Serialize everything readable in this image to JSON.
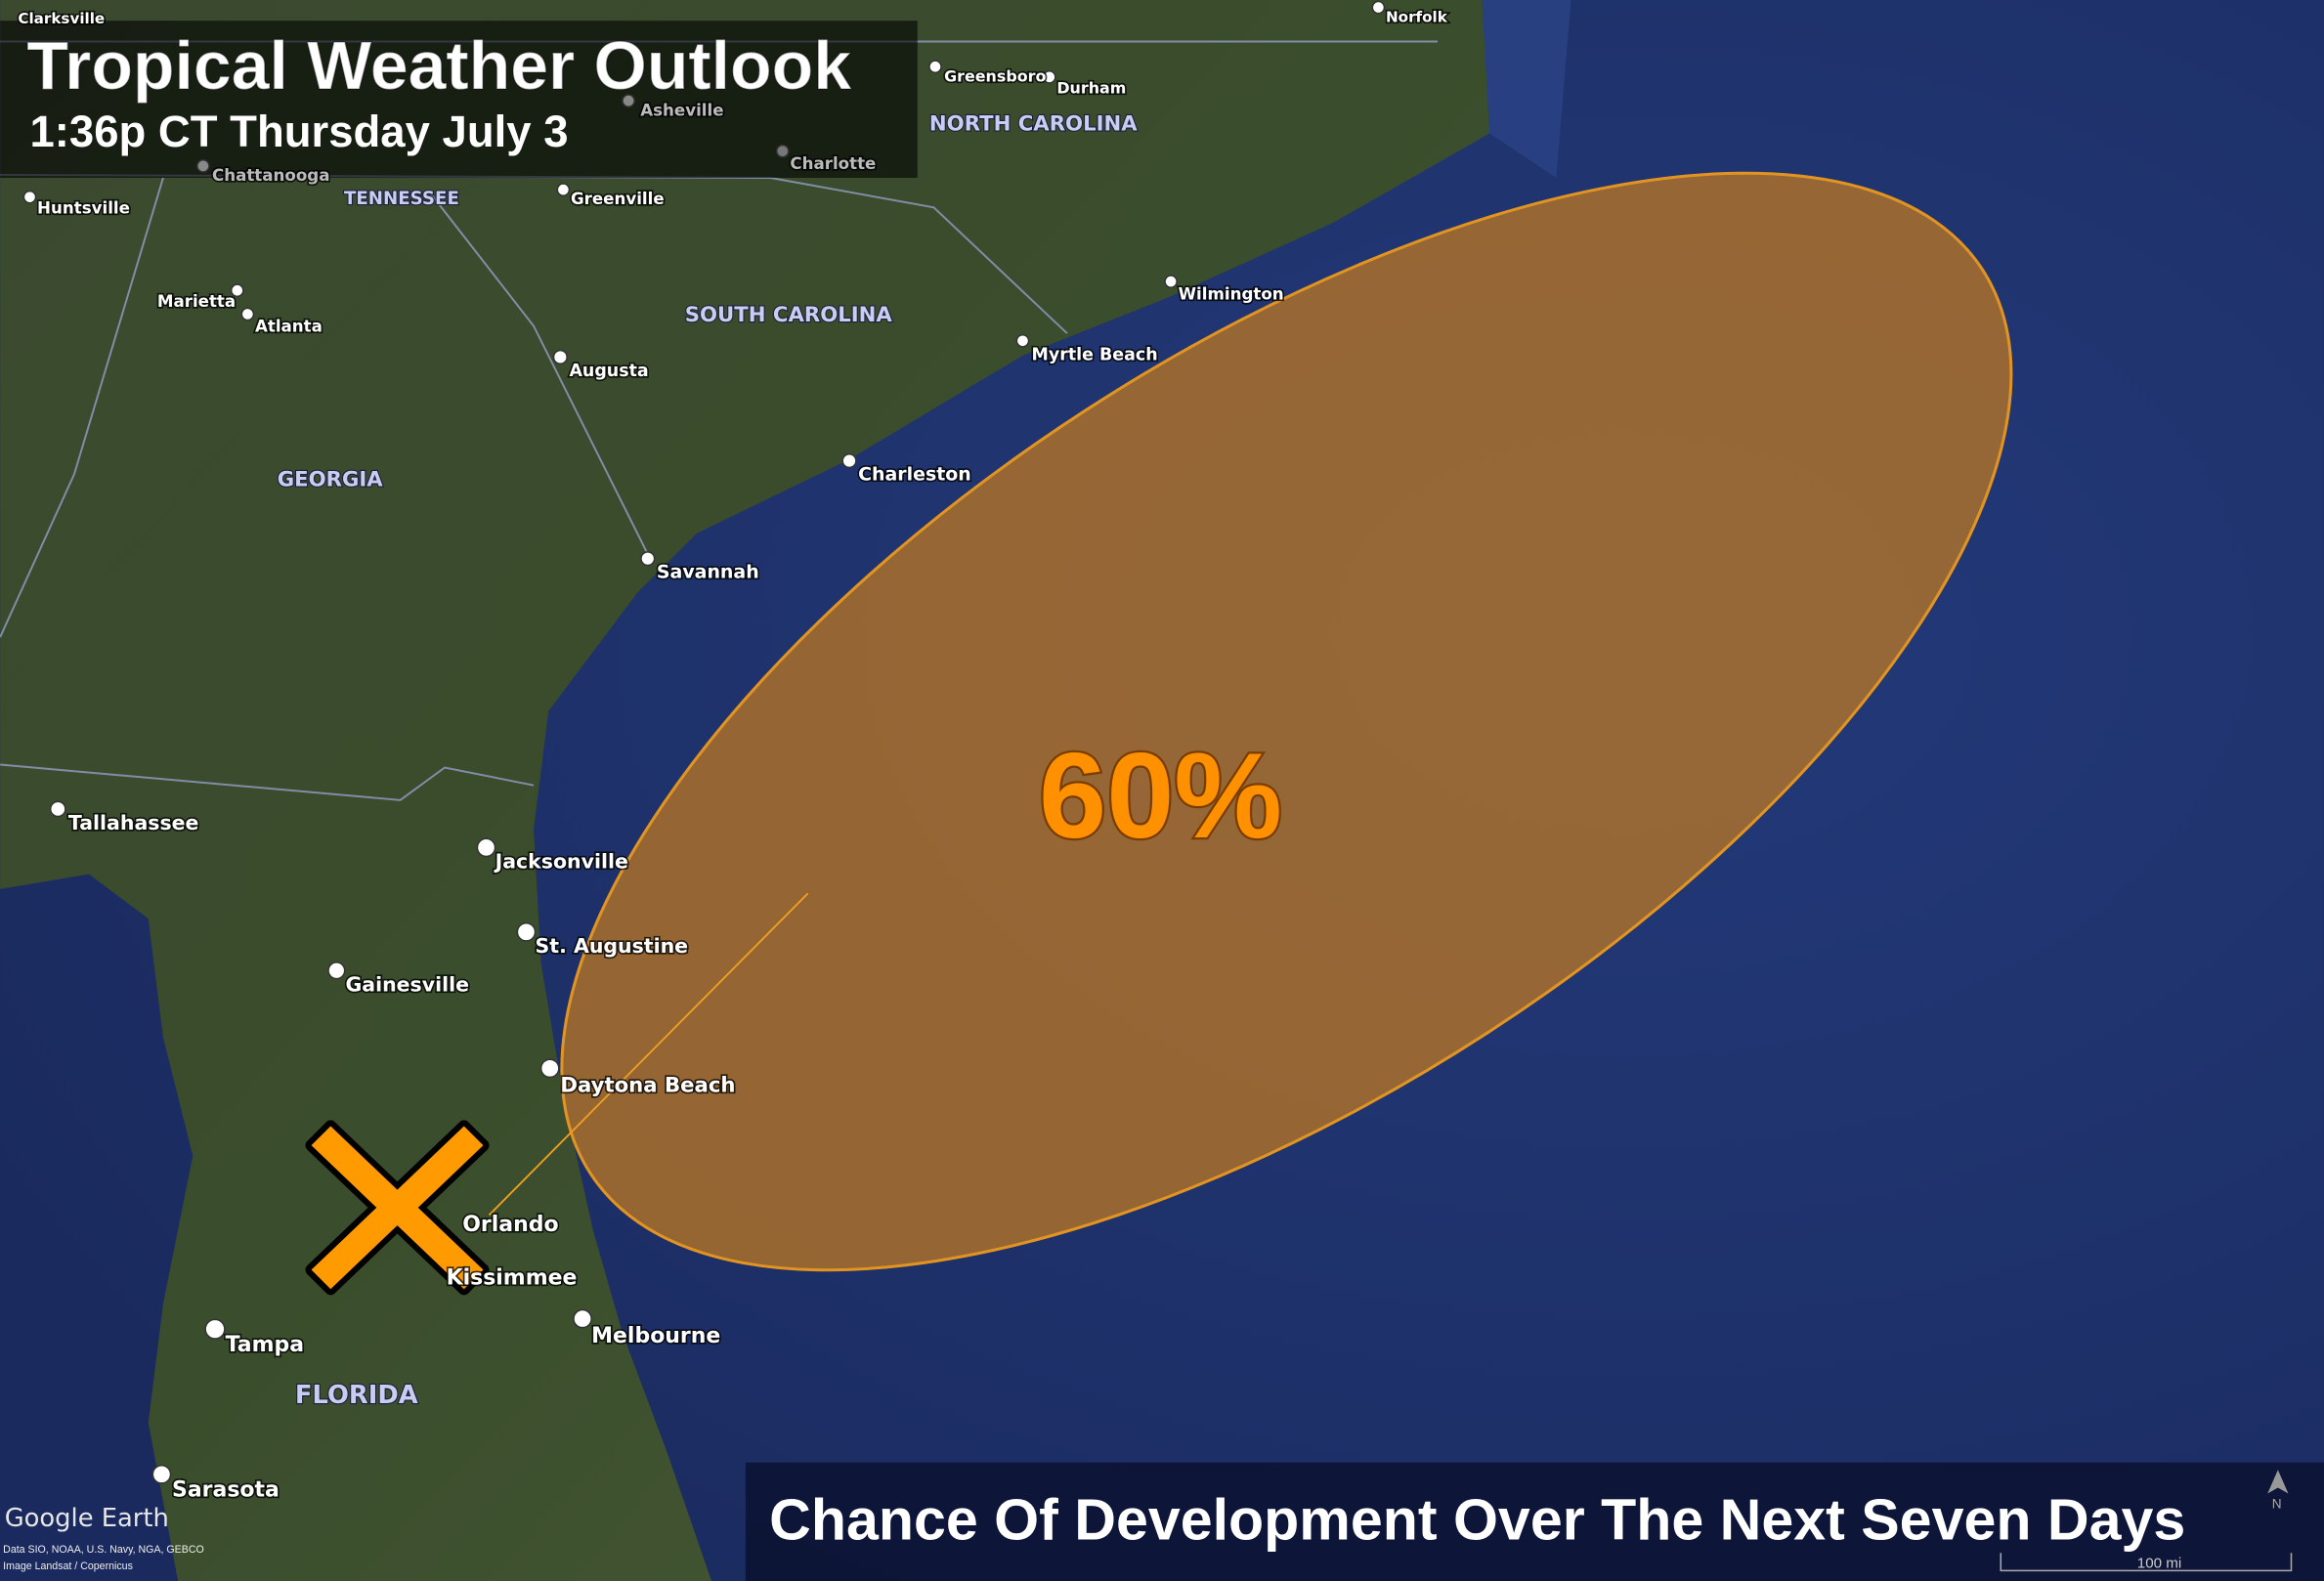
{
  "header": {
    "title": "Tropical Weather Outlook",
    "timestamp": "1:36p CT Thursday July 3"
  },
  "outlook": {
    "probability": "60%",
    "probability_value": 60,
    "area_color": "#c47a1e",
    "marker_color": "#ff9a00",
    "marker_icon": "x-icon"
  },
  "footer": {
    "caption": "Chance Of Development Over The Next Seven Days"
  },
  "map": {
    "states": [
      "TENNESSEE",
      "NORTH CAROLINA",
      "SOUTH CAROLINA",
      "GEORGIA",
      "FLORIDA"
    ],
    "cities": [
      "Clarksville",
      "Norfolk",
      "Greensboro",
      "Durham",
      "Asheville",
      "Charlotte",
      "Chattanooga",
      "Greenville",
      "Huntsville",
      "Wilmington",
      "Marietta",
      "Atlanta",
      "Myrtle Beach",
      "Augusta",
      "Charleston",
      "Savannah",
      "Tallahassee",
      "Jacksonville",
      "St. Augustine",
      "Gainesville",
      "Daytona Beach",
      "Orlando",
      "Kissimmee",
      "Melbourne",
      "Tampa",
      "Sarasota"
    ],
    "scale": "100 mi",
    "compass": "N",
    "brand": "Google Earth",
    "attribution": [
      "Data SIO, NOAA, U.S. Navy, NGA, GEBCO",
      "Image Landsat / Copernicus"
    ]
  }
}
